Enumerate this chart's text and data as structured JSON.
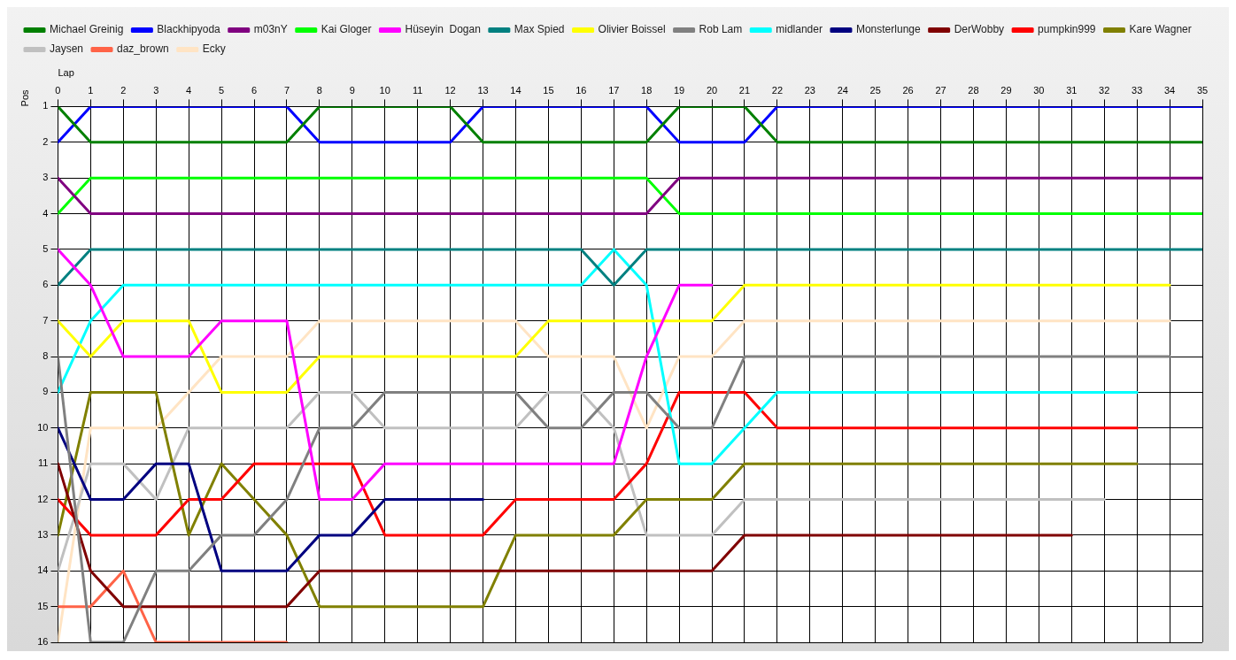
{
  "chart_data": {
    "type": "line",
    "xlabel": "Lap",
    "ylabel": "Pos",
    "x": [
      0,
      1,
      2,
      3,
      4,
      5,
      6,
      7,
      8,
      9,
      10,
      11,
      12,
      13,
      14,
      15,
      16,
      17,
      18,
      19,
      20,
      21,
      22,
      23,
      24,
      25,
      26,
      27,
      28,
      29,
      30,
      31,
      32,
      33,
      34,
      35
    ],
    "xlim": [
      0,
      35
    ],
    "xticks": [
      0,
      1,
      2,
      3,
      4,
      5,
      6,
      7,
      8,
      9,
      10,
      11,
      12,
      13,
      14,
      15,
      16,
      17,
      18,
      19,
      20,
      21,
      22,
      23,
      24,
      25,
      26,
      27,
      28,
      29,
      30,
      31,
      32,
      33,
      34,
      35
    ],
    "ylim": [
      16,
      1
    ],
    "yticks": [
      1,
      2,
      3,
      4,
      5,
      6,
      7,
      8,
      9,
      10,
      11,
      12,
      13,
      14,
      15,
      16
    ],
    "grid": true,
    "legend": "top",
    "marker": "none",
    "line_style": "solid",
    "series": [
      {
        "name": "Michael Greinig",
        "color": "#008000",
        "values": [
          1,
          2,
          2,
          2,
          2,
          2,
          2,
          2,
          1,
          1,
          1,
          1,
          1,
          2,
          2,
          2,
          2,
          2,
          2,
          1,
          1,
          1,
          2,
          2,
          2,
          2,
          2,
          2,
          2,
          2,
          2,
          2,
          2,
          2,
          2,
          2
        ]
      },
      {
        "name": "Blackhipyoda",
        "color": "#0000ff",
        "values": [
          2,
          1,
          1,
          1,
          1,
          1,
          1,
          1,
          2,
          2,
          2,
          2,
          2,
          1,
          1,
          1,
          1,
          1,
          1,
          2,
          2,
          2,
          1,
          1,
          1,
          1,
          1,
          1,
          1,
          1,
          1,
          1,
          1,
          1,
          1,
          1
        ]
      },
      {
        "name": "m03nY",
        "color": "#800080",
        "values": [
          3,
          4,
          4,
          4,
          4,
          4,
          4,
          4,
          4,
          4,
          4,
          4,
          4,
          4,
          4,
          4,
          4,
          4,
          4,
          3,
          3,
          3,
          3,
          3,
          3,
          3,
          3,
          3,
          3,
          3,
          3,
          3,
          3,
          3,
          3,
          3
        ]
      },
      {
        "name": "Kai Gloger",
        "color": "#00ff00",
        "values": [
          4,
          3,
          3,
          3,
          3,
          3,
          3,
          3,
          3,
          3,
          3,
          3,
          3,
          3,
          3,
          3,
          3,
          3,
          3,
          4,
          4,
          4,
          4,
          4,
          4,
          4,
          4,
          4,
          4,
          4,
          4,
          4,
          4,
          4,
          4,
          4
        ]
      },
      {
        "name": "Hüseyin  Dogan",
        "color": "#ff00ff",
        "values": [
          5,
          6,
          8,
          8,
          8,
          7,
          7,
          7,
          12,
          12,
          11,
          11,
          11,
          11,
          11,
          11,
          11,
          11,
          8,
          6,
          6,
          null,
          null,
          null,
          null,
          null,
          null,
          null,
          null,
          null,
          null,
          null,
          null,
          null,
          null,
          null
        ]
      },
      {
        "name": "Max Spied",
        "color": "#008080",
        "values": [
          6,
          5,
          5,
          5,
          5,
          5,
          5,
          5,
          5,
          5,
          5,
          5,
          5,
          5,
          5,
          5,
          5,
          6,
          5,
          5,
          5,
          5,
          5,
          5,
          5,
          5,
          5,
          5,
          5,
          5,
          5,
          5,
          5,
          5,
          5,
          5
        ]
      },
      {
        "name": "Olivier Boissel",
        "color": "#ffff00",
        "values": [
          7,
          8,
          7,
          7,
          7,
          9,
          9,
          9,
          8,
          8,
          8,
          8,
          8,
          8,
          8,
          7,
          7,
          7,
          7,
          7,
          7,
          6,
          6,
          6,
          6,
          6,
          6,
          6,
          6,
          6,
          6,
          6,
          6,
          6,
          6,
          null
        ]
      },
      {
        "name": "Rob Lam",
        "color": "#808080",
        "values": [
          8,
          16,
          16,
          14,
          14,
          13,
          13,
          12,
          10,
          10,
          9,
          9,
          9,
          9,
          9,
          10,
          10,
          9,
          9,
          10,
          10,
          8,
          8,
          8,
          8,
          8,
          8,
          8,
          8,
          8,
          8,
          8,
          8,
          8,
          8,
          null
        ]
      },
      {
        "name": "midlander",
        "color": "#00ffff",
        "values": [
          9,
          7,
          6,
          6,
          6,
          6,
          6,
          6,
          6,
          6,
          6,
          6,
          6,
          6,
          6,
          6,
          6,
          5,
          6,
          11,
          11,
          10,
          9,
          9,
          9,
          9,
          9,
          9,
          9,
          9,
          9,
          9,
          9,
          9,
          null,
          null
        ]
      },
      {
        "name": "Monsterlunge",
        "color": "#000080",
        "values": [
          10,
          12,
          12,
          11,
          11,
          14,
          14,
          14,
          13,
          13,
          12,
          12,
          12,
          12,
          null,
          null,
          null,
          null,
          null,
          null,
          null,
          null,
          null,
          null,
          null,
          null,
          null,
          null,
          null,
          null,
          null,
          null,
          null,
          null,
          null,
          null
        ]
      },
      {
        "name": "DerWobby",
        "color": "#800000",
        "values": [
          11,
          14,
          15,
          15,
          15,
          15,
          15,
          15,
          14,
          14,
          14,
          14,
          14,
          14,
          14,
          14,
          14,
          14,
          14,
          14,
          14,
          13,
          13,
          13,
          13,
          13,
          13,
          13,
          13,
          13,
          13,
          13,
          null,
          null,
          null,
          null
        ]
      },
      {
        "name": "pumpkin999",
        "color": "#ff0000",
        "values": [
          12,
          13,
          13,
          13,
          12,
          12,
          11,
          11,
          11,
          11,
          13,
          13,
          13,
          13,
          12,
          12,
          12,
          12,
          11,
          9,
          9,
          9,
          10,
          10,
          10,
          10,
          10,
          10,
          10,
          10,
          10,
          10,
          10,
          10,
          null,
          null
        ]
      },
      {
        "name": "Kare Wagner",
        "color": "#808000",
        "values": [
          13,
          9,
          9,
          9,
          13,
          11,
          12,
          13,
          15,
          15,
          15,
          15,
          15,
          15,
          13,
          13,
          13,
          13,
          12,
          12,
          12,
          11,
          11,
          11,
          11,
          11,
          11,
          11,
          11,
          11,
          11,
          11,
          11,
          11,
          null,
          null
        ]
      },
      {
        "name": "Jaysen",
        "color": "#c0c0c0",
        "values": [
          14,
          11,
          11,
          12,
          10,
          10,
          10,
          10,
          9,
          9,
          10,
          10,
          10,
          10,
          10,
          9,
          9,
          10,
          13,
          13,
          13,
          12,
          12,
          12,
          12,
          12,
          12,
          12,
          12,
          12,
          12,
          12,
          12,
          null,
          null,
          null
        ]
      },
      {
        "name": "daz_brown",
        "color": "#ff6347",
        "values": [
          15,
          15,
          14,
          16,
          16,
          16,
          16,
          16,
          null,
          null,
          null,
          null,
          null,
          null,
          null,
          null,
          null,
          null,
          null,
          null,
          null,
          null,
          null,
          null,
          null,
          null,
          null,
          null,
          null,
          null,
          null,
          null,
          null,
          null,
          null,
          null
        ]
      },
      {
        "name": "Ecky",
        "color": "#ffe4c4",
        "values": [
          16,
          10,
          10,
          10,
          9,
          8,
          8,
          8,
          7,
          7,
          7,
          7,
          7,
          7,
          7,
          8,
          8,
          8,
          10,
          8,
          8,
          7,
          7,
          7,
          7,
          7,
          7,
          7,
          7,
          7,
          7,
          7,
          7,
          7,
          7,
          null
        ]
      }
    ]
  }
}
